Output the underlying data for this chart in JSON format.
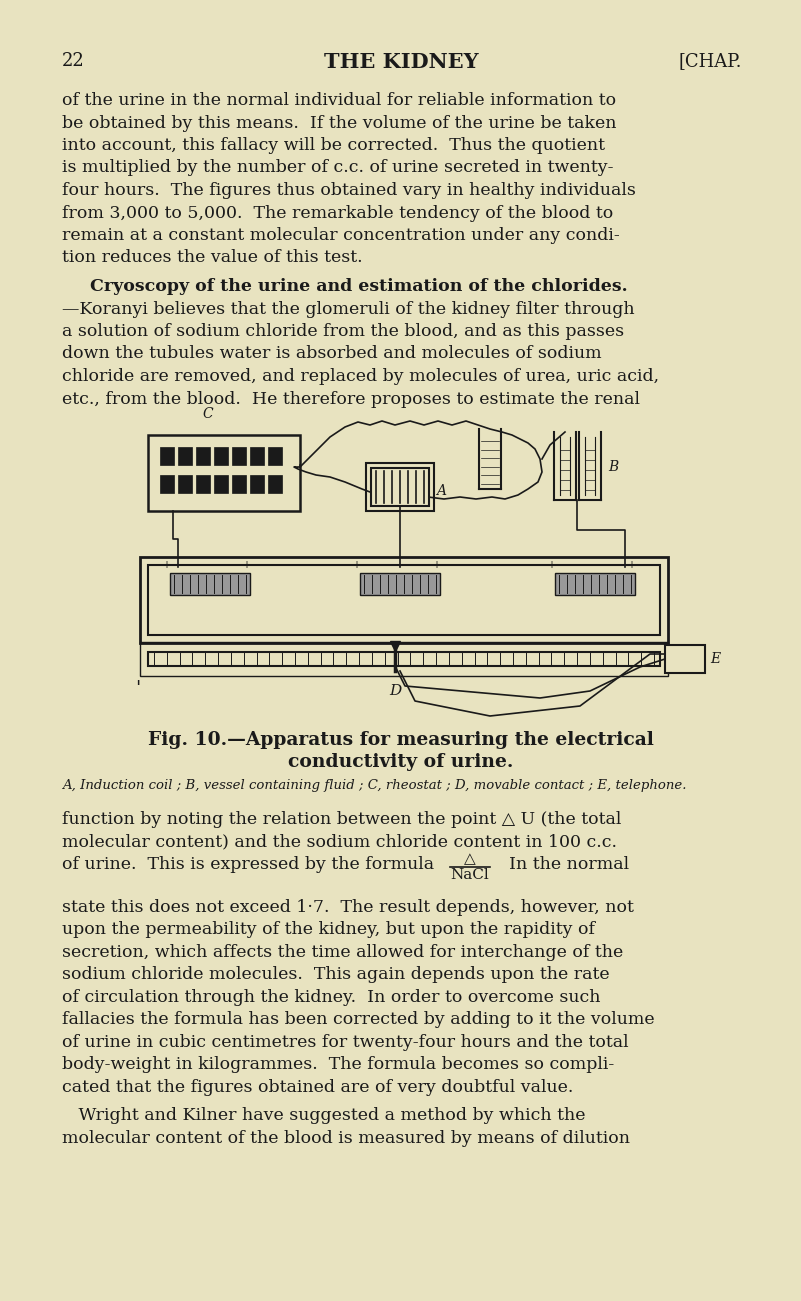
{
  "bg_color": "#e8e3c0",
  "text_color": "#1a1a1a",
  "page_number": "22",
  "title": "THE KIDNEY",
  "chapter": "[CHAP.",
  "para1_lines": [
    "of the urine in the normal individual for reliable information to",
    "be obtained by this means.  If the volume of the urine be taken",
    "into account, this fallacy will be corrected.  Thus the quotient",
    "is multiplied by the number of c.c. of urine secreted in twenty-",
    "four hours.  The figures thus obtained vary in healthy individuals",
    "from 3,000 to 5,000.  The remarkable tendency of the blood to",
    "remain at a constant molecular concentration under any condi-",
    "tion reduces the value of this test."
  ],
  "para2_bold": "Cryoscopy of the urine and estimation of the chlorides.",
  "para2_lines": [
    "—Koranyi believes that the glomeruli of the kidney filter through",
    "a solution of sodium chloride from the blood, and as this passes",
    "down the tubules water is absorbed and molecules of sodium",
    "chloride are removed, and replaced by molecules of urea, uric acid,",
    "etc., from the blood.  He therefore proposes to estimate the renal"
  ],
  "fig_caption_line1": "Fig. 10.—Apparatus for measuring the electrical",
  "fig_caption_line2": "conductivity of urine.",
  "fig_subcaption": "A, Induction coil ; B, vessel containing fluid ; C, rheostat ; D, movable contact ; E, telephone.",
  "para3_lines": [
    "function by noting the relation between the point △ U (the total",
    "molecular content) and the sodium chloride content in 100 c.c."
  ],
  "para3_formula_line": "of urine.  This is expressed by the formula",
  "formula_num": "△",
  "formula_den": "NaCl",
  "formula_suffix": "  In the normal",
  "para3_rest_lines": [
    "state this does not exceed 1·7.  The result depends, however, not",
    "upon the permeability of the kidney, but upon the rapidity of",
    "secretion, which affects the time allowed for interchange of the",
    "sodium chloride molecules.  This again depends upon the rate",
    "of circulation through the kidney.  In order to overcome such",
    "fallacies the formula has been corrected by adding to it the volume",
    "of urine in cubic centimetres for twenty-four hours and the total",
    "body-weight in kilogrammes.  The formula becomes so compli-",
    "cated that the figures obtained are of very doubtful value."
  ],
  "para4_lines": [
    "   Wright and Kilner have suggested a method by which the",
    "molecular content of the blood is measured by means of dilution"
  ]
}
